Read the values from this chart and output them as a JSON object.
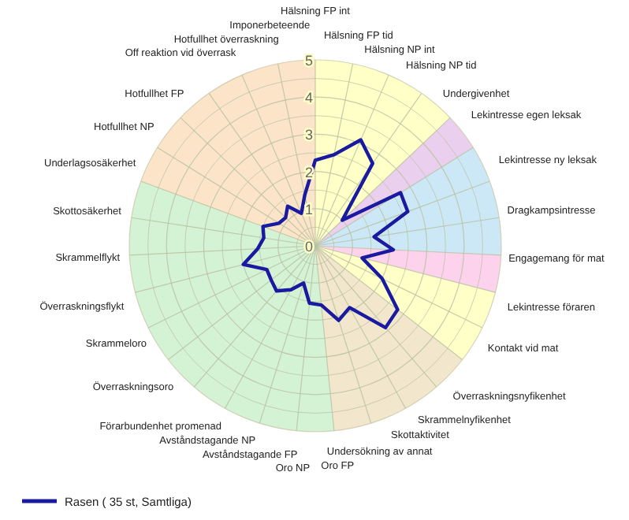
{
  "chart_data": {
    "type": "radar",
    "categories": [
      "Hälsning FP int",
      "Hälsning FP tid",
      "Hälsning NP int",
      "Hälsning NP tid",
      "Undergivenhet",
      "Lekintresse egen leksak",
      "Lekintresse ny leksak",
      "Dragkampsintresse",
      "Engagemang för mat",
      "Lekintresse föraren",
      "Kontakt vid mat",
      "Överraskningsnyfikenhet",
      "Skrammelnyfikenhet",
      "Skottaktivitet",
      "Undersökning av annat",
      "Oro FP",
      "Oro NP",
      "Avståndstagande FP",
      "Avståndstagande NP",
      "Förarbundenhet promenad",
      "Överraskningsoro",
      "Skrammeloro",
      "Överraskningsflykt",
      "Skrammelflykt",
      "Skottosäkerhet",
      "Underlagsosäkerhet",
      "Hotfullhet NP",
      "Hotfullhet FP",
      "Off reaktion vid överrask",
      "Hotfullhet överraskning",
      "Imponerbeteende"
    ],
    "series": [
      {
        "name": "Rasen ( 35 st, Samtliga)",
        "color": "#1a1aa0",
        "values": [
          2.3,
          2.5,
          3.1,
          2.7,
          1.0,
          2.7,
          2.65,
          1.6,
          2.1,
          1.3,
          2.0,
          2.8,
          2.9,
          1.9,
          2.1,
          1.6,
          1.55,
          1.05,
          1.35,
          1.6,
          1.5,
          1.45,
          2.0,
          1.55,
          1.4,
          1.5,
          1.15,
          1.1,
          1.3,
          0.95,
          1.4
        ]
      }
    ],
    "ylim": [
      0,
      5
    ],
    "yticks": [
      0,
      1,
      2,
      3,
      4,
      5
    ],
    "grid": true,
    "legend": "bottom left",
    "line_style": "solid",
    "marker": "none"
  }
}
